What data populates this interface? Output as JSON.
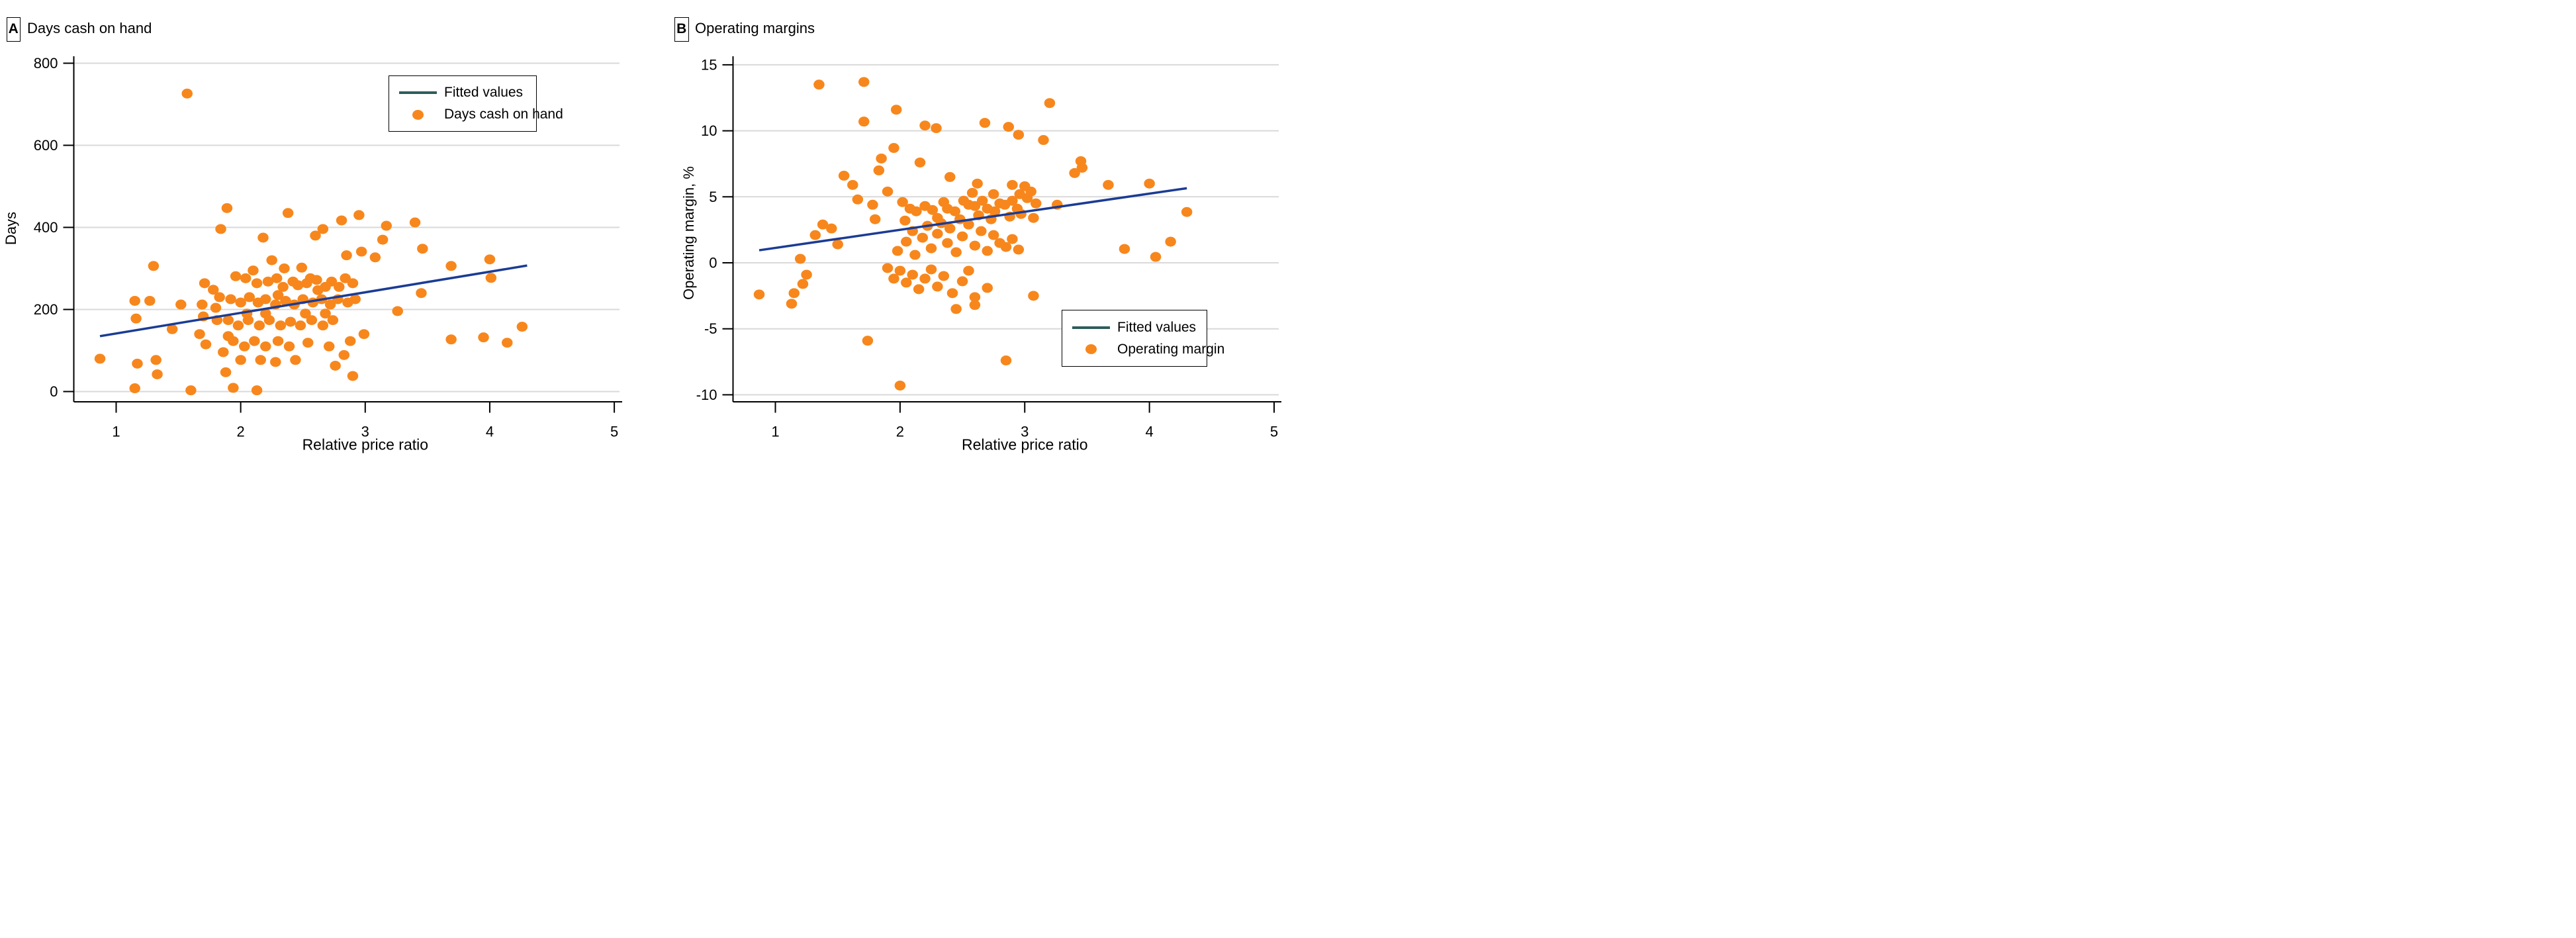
{
  "colors": {
    "dot": "#F7871C",
    "fit_line": "#1B3C94",
    "legend_line_swatch": "#2F5D5B",
    "gridline": "#D9D9D9",
    "axis": "#000000",
    "background": "#FFFFFF"
  },
  "chart_data": [
    {
      "type": "scatter",
      "panel_label": "A",
      "title": "Days cash on hand",
      "xlabel": "Relative price ratio",
      "ylabel": "Days",
      "xticks": [
        1,
        2,
        3,
        4,
        5
      ],
      "yticks": [
        0,
        200,
        400,
        600,
        800
      ],
      "xlim": [
        0.66,
        5.05
      ],
      "ylim": [
        -25,
        817
      ],
      "grid": "horizontal-only",
      "legend": {
        "position": "top-right",
        "items": [
          {
            "label": "Fitted values",
            "marker": "line"
          },
          {
            "label": "Days cash on hand",
            "marker": "dot"
          }
        ]
      },
      "fitted_line": {
        "x": [
          0.87,
          4.3
        ],
        "y": [
          135,
          307
        ]
      },
      "points": [
        [
          0.87,
          80
        ],
        [
          1.15,
          221
        ],
        [
          1.16,
          178
        ],
        [
          1.15,
          8
        ],
        [
          1.17,
          68
        ],
        [
          1.27,
          221
        ],
        [
          1.3,
          306
        ],
        [
          1.32,
          77
        ],
        [
          1.33,
          42
        ],
        [
          1.45,
          152
        ],
        [
          1.52,
          212
        ],
        [
          1.57,
          726
        ],
        [
          1.6,
          3
        ],
        [
          1.67,
          140
        ],
        [
          1.69,
          212
        ],
        [
          1.7,
          183
        ],
        [
          1.71,
          264
        ],
        [
          1.72,
          115
        ],
        [
          1.78,
          248
        ],
        [
          1.8,
          204
        ],
        [
          1.81,
          174
        ],
        [
          1.83,
          230
        ],
        [
          1.84,
          396
        ],
        [
          1.86,
          96
        ],
        [
          1.88,
          47
        ],
        [
          1.89,
          447
        ],
        [
          1.9,
          174
        ],
        [
          1.9,
          135
        ],
        [
          1.92,
          225
        ],
        [
          1.94,
          123
        ],
        [
          1.94,
          9
        ],
        [
          1.96,
          281
        ],
        [
          1.98,
          161
        ],
        [
          2.0,
          217
        ],
        [
          2.0,
          77
        ],
        [
          2.03,
          110
        ],
        [
          2.04,
          276
        ],
        [
          2.05,
          190
        ],
        [
          2.06,
          174
        ],
        [
          2.07,
          230
        ],
        [
          2.1,
          295
        ],
        [
          2.11,
          123
        ],
        [
          2.13,
          264
        ],
        [
          2.13,
          3
        ],
        [
          2.14,
          217
        ],
        [
          2.15,
          161
        ],
        [
          2.16,
          77
        ],
        [
          2.18,
          375
        ],
        [
          2.2,
          110
        ],
        [
          2.2,
          225
        ],
        [
          2.2,
          190
        ],
        [
          2.22,
          268
        ],
        [
          2.23,
          174
        ],
        [
          2.25,
          320
        ],
        [
          2.28,
          212
        ],
        [
          2.28,
          72
        ],
        [
          2.29,
          276
        ],
        [
          2.3,
          123
        ],
        [
          2.3,
          235
        ],
        [
          2.32,
          161
        ],
        [
          2.34,
          255
        ],
        [
          2.35,
          300
        ],
        [
          2.36,
          221
        ],
        [
          2.38,
          435
        ],
        [
          2.39,
          110
        ],
        [
          2.4,
          170
        ],
        [
          2.42,
          268
        ],
        [
          2.43,
          212
        ],
        [
          2.44,
          77
        ],
        [
          2.46,
          259
        ],
        [
          2.48,
          161
        ],
        [
          2.49,
          302
        ],
        [
          2.5,
          225
        ],
        [
          2.52,
          190
        ],
        [
          2.53,
          264
        ],
        [
          2.54,
          119
        ],
        [
          2.56,
          276
        ],
        [
          2.57,
          174
        ],
        [
          2.58,
          217
        ],
        [
          2.6,
          380
        ],
        [
          2.61,
          272
        ],
        [
          2.62,
          247
        ],
        [
          2.65,
          225
        ],
        [
          2.66,
          396
        ],
        [
          2.66,
          161
        ],
        [
          2.68,
          255
        ],
        [
          2.68,
          190
        ],
        [
          2.71,
          110
        ],
        [
          2.72,
          212
        ],
        [
          2.73,
          268
        ],
        [
          2.74,
          174
        ],
        [
          2.76,
          63
        ],
        [
          2.78,
          225
        ],
        [
          2.79,
          255
        ],
        [
          2.81,
          417
        ],
        [
          2.83,
          89
        ],
        [
          2.84,
          276
        ],
        [
          2.85,
          332
        ],
        [
          2.86,
          217
        ],
        [
          2.88,
          123
        ],
        [
          2.9,
          264
        ],
        [
          2.9,
          38
        ],
        [
          2.92,
          225
        ],
        [
          2.95,
          430
        ],
        [
          2.97,
          341
        ],
        [
          2.99,
          140
        ],
        [
          3.08,
          327
        ],
        [
          3.14,
          370
        ],
        [
          3.17,
          404
        ],
        [
          3.26,
          196
        ],
        [
          3.4,
          412
        ],
        [
          3.45,
          240
        ],
        [
          3.46,
          348
        ],
        [
          3.69,
          306
        ],
        [
          3.69,
          127
        ],
        [
          3.95,
          132
        ],
        [
          4.0,
          322
        ],
        [
          4.01,
          277
        ],
        [
          4.14,
          119
        ],
        [
          4.26,
          158
        ]
      ]
    },
    {
      "type": "scatter",
      "panel_label": "B",
      "title": "Operating margins",
      "xlabel": "Relative price ratio",
      "ylabel": "Operating margin, %",
      "xticks": [
        1,
        2,
        3,
        4,
        5
      ],
      "yticks": [
        -10,
        -5,
        0,
        5,
        10,
        15
      ],
      "xlim": [
        0.66,
        5.05
      ],
      "ylim": [
        -10.5,
        15.6
      ],
      "grid": "horizontal-only",
      "legend": {
        "position": "bottom-right",
        "items": [
          {
            "label": "Fitted values",
            "marker": "line"
          },
          {
            "label": "Operating margin",
            "marker": "dot"
          }
        ]
      },
      "fitted_line": {
        "x": [
          0.87,
          4.3
        ],
        "y": [
          0.95,
          5.65
        ]
      },
      "points": [
        [
          0.87,
          -2.4
        ],
        [
          1.13,
          -3.1
        ],
        [
          1.15,
          -2.3
        ],
        [
          1.2,
          0.3
        ],
        [
          1.22,
          -1.6
        ],
        [
          1.25,
          -0.9
        ],
        [
          1.32,
          2.1
        ],
        [
          1.35,
          13.5
        ],
        [
          1.38,
          2.9
        ],
        [
          1.45,
          2.6
        ],
        [
          1.5,
          1.4
        ],
        [
          1.55,
          6.6
        ],
        [
          1.62,
          5.9
        ],
        [
          1.66,
          4.8
        ],
        [
          1.71,
          13.7
        ],
        [
          1.71,
          10.7
        ],
        [
          1.74,
          -5.9
        ],
        [
          1.78,
          4.4
        ],
        [
          1.8,
          3.3
        ],
        [
          1.83,
          7.0
        ],
        [
          1.85,
          7.9
        ],
        [
          1.9,
          5.4
        ],
        [
          1.95,
          8.7
        ],
        [
          1.97,
          11.6
        ],
        [
          2.0,
          -9.3
        ],
        [
          2.02,
          4.6
        ],
        [
          1.9,
          -0.4
        ],
        [
          1.95,
          -1.2
        ],
        [
          2.0,
          -0.6
        ],
        [
          2.05,
          -1.5
        ],
        [
          2.1,
          -0.9
        ],
        [
          2.15,
          -2.0
        ],
        [
          2.2,
          -1.2
        ],
        [
          2.25,
          -0.5
        ],
        [
          2.3,
          -1.8
        ],
        [
          2.35,
          -1.0
        ],
        [
          2.42,
          -2.3
        ],
        [
          2.45,
          -3.5
        ],
        [
          2.5,
          -1.4
        ],
        [
          2.55,
          -0.6
        ],
        [
          2.6,
          -2.6
        ],
        [
          2.6,
          -3.2
        ],
        [
          2.7,
          -1.9
        ],
        [
          2.85,
          -7.4
        ],
        [
          1.98,
          0.9
        ],
        [
          2.05,
          1.6
        ],
        [
          2.1,
          2.4
        ],
        [
          2.12,
          0.6
        ],
        [
          2.18,
          1.9
        ],
        [
          2.22,
          2.8
        ],
        [
          2.25,
          1.1
        ],
        [
          2.3,
          2.2
        ],
        [
          2.33,
          3.0
        ],
        [
          2.38,
          1.5
        ],
        [
          2.4,
          2.6
        ],
        [
          2.45,
          0.8
        ],
        [
          2.5,
          2.0
        ],
        [
          2.55,
          2.9
        ],
        [
          2.6,
          1.3
        ],
        [
          2.65,
          2.4
        ],
        [
          2.7,
          0.9
        ],
        [
          2.75,
          2.1
        ],
        [
          2.8,
          1.5
        ],
        [
          2.85,
          1.2
        ],
        [
          2.9,
          1.8
        ],
        [
          2.95,
          1.0
        ],
        [
          2.04,
          3.2
        ],
        [
          2.08,
          4.1
        ],
        [
          2.13,
          3.9
        ],
        [
          2.2,
          4.3
        ],
        [
          2.26,
          4.0
        ],
        [
          2.3,
          3.4
        ],
        [
          2.35,
          4.6
        ],
        [
          2.38,
          4.1
        ],
        [
          2.44,
          3.9
        ],
        [
          2.48,
          3.3
        ],
        [
          2.51,
          4.7
        ],
        [
          2.55,
          4.4
        ],
        [
          2.6,
          4.3
        ],
        [
          2.63,
          3.6
        ],
        [
          2.66,
          4.7
        ],
        [
          2.7,
          4.1
        ],
        [
          2.73,
          3.3
        ],
        [
          2.76,
          3.9
        ],
        [
          2.8,
          4.5
        ],
        [
          2.84,
          4.4
        ],
        [
          2.88,
          3.5
        ],
        [
          2.9,
          4.7
        ],
        [
          2.94,
          4.1
        ],
        [
          2.97,
          3.7
        ],
        [
          3.02,
          4.9
        ],
        [
          3.05,
          5.4
        ],
        [
          3.07,
          3.4
        ],
        [
          3.09,
          4.5
        ],
        [
          2.16,
          7.6
        ],
        [
          2.4,
          6.5
        ],
        [
          2.58,
          5.3
        ],
        [
          2.62,
          6.0
        ],
        [
          2.75,
          5.2
        ],
        [
          2.9,
          5.9
        ],
        [
          2.96,
          5.2
        ],
        [
          3.0,
          5.8
        ],
        [
          3.4,
          6.8
        ],
        [
          3.45,
          7.7
        ],
        [
          3.46,
          7.2
        ],
        [
          3.67,
          5.9
        ],
        [
          4.0,
          6.0
        ],
        [
          2.2,
          10.4
        ],
        [
          2.29,
          10.2
        ],
        [
          2.68,
          10.6
        ],
        [
          2.87,
          10.3
        ],
        [
          2.95,
          9.7
        ],
        [
          3.15,
          9.3
        ],
        [
          3.2,
          12.1
        ],
        [
          3.07,
          -2.5
        ],
        [
          3.26,
          4.4
        ],
        [
          3.8,
          1.05
        ],
        [
          4.05,
          0.45
        ],
        [
          4.17,
          1.6
        ],
        [
          4.3,
          3.85
        ]
      ]
    }
  ]
}
